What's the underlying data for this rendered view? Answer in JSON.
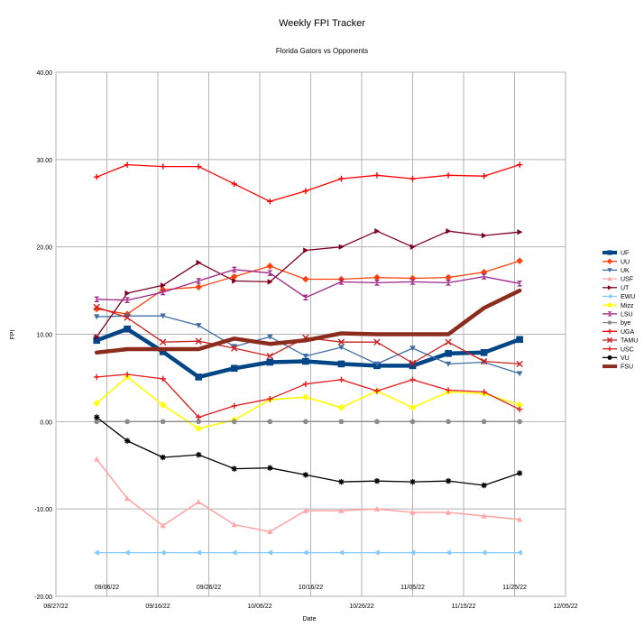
{
  "chart_data": {
    "type": "line",
    "title": "Weekly FPI Tracker",
    "subtitle": "Florida Gators vs Opponents",
    "xlabel": "Date",
    "ylabel": "FPI",
    "ylim": [
      -20,
      40
    ],
    "yticks": [
      "-20.00",
      "-10.00",
      "0.00",
      "10.00",
      "20.00",
      "30.00",
      "40.00"
    ],
    "xlim": [
      "2022-08-27",
      "2022-12-05"
    ],
    "xticks": [
      "08/27/22",
      "09/06/22",
      "09/16/22",
      "09/26/22",
      "10/06/22",
      "10/16/22",
      "10/26/22",
      "11/05/22",
      "11/15/22",
      "11/25/22",
      "12/05/22"
    ],
    "grid": true,
    "legend_position": "right",
    "x": [
      "2022-09-04",
      "2022-09-10",
      "2022-09-17",
      "2022-09-24",
      "2022-10-01",
      "2022-10-08",
      "2022-10-15",
      "2022-10-22",
      "2022-10-29",
      "2022-11-05",
      "2022-11-12",
      "2022-11-19",
      "2022-11-26"
    ],
    "series": [
      {
        "name": "UF",
        "color": "#004586",
        "marker": "square",
        "width": 4.5,
        "values": [
          9.3,
          10.6,
          8.0,
          5.1,
          6.1,
          6.8,
          6.9,
          6.6,
          6.4,
          6.4,
          7.8,
          7.9,
          9.4
        ]
      },
      {
        "name": "UU",
        "color": "#ff420e",
        "marker": "diamond",
        "width": 1.3,
        "values": [
          12.9,
          12.3,
          15.1,
          15.4,
          16.6,
          17.8,
          16.3,
          16.3,
          16.5,
          16.4,
          16.5,
          17.1,
          18.4
        ]
      },
      {
        "name": "UK",
        "color": "#3e6fa4",
        "marker": "tri-down",
        "width": 1.3,
        "values": [
          12.0,
          12.1,
          12.1,
          11.0,
          8.6,
          9.7,
          7.5,
          8.5,
          6.6,
          8.4,
          6.6,
          6.8,
          5.5
        ]
      },
      {
        "name": "USF",
        "color": "#ffa7a7",
        "marker": "tri-up",
        "width": 1.6,
        "values": [
          -4.3,
          -8.8,
          -11.9,
          -9.2,
          -11.8,
          -12.6,
          -10.2,
          -10.2,
          -10.0,
          -10.4,
          -10.4,
          -10.8,
          -11.2
        ]
      },
      {
        "name": "UT",
        "color": "#7e0021",
        "marker": "tri-right",
        "width": 1.3,
        "values": [
          9.7,
          14.7,
          15.6,
          18.2,
          16.1,
          16.0,
          19.6,
          20.0,
          21.8,
          20.0,
          21.8,
          21.3,
          21.7
        ]
      },
      {
        "name": "EWU",
        "color": "#83caff",
        "marker": "tri-left",
        "width": 1.3,
        "values": [
          -15.0,
          -15.0,
          -15.0,
          -15.0,
          -15.0,
          -15.0,
          -15.0,
          -15.0,
          -15.0,
          -15.0,
          -15.0,
          -15.0,
          -15.0
        ]
      },
      {
        "name": "Mizz",
        "color": "#ffff00",
        "marker": "diamond",
        "width": 1.6,
        "values": [
          2.1,
          5.1,
          1.9,
          -0.8,
          0.2,
          2.5,
          2.8,
          1.6,
          3.5,
          1.6,
          3.4,
          3.2,
          1.9
        ]
      },
      {
        "name": "LSU",
        "color": "#9c2487",
        "marker": "bowtie",
        "width": 1.3,
        "values": [
          14.0,
          13.9,
          14.8,
          16.1,
          17.4,
          17.0,
          14.2,
          16.0,
          15.9,
          16.0,
          15.9,
          16.6,
          15.8
        ]
      },
      {
        "name": "bye",
        "color": "#8b8b8b",
        "marker": "circle",
        "width": 1.3,
        "values": [
          0,
          0,
          0,
          0,
          0,
          0,
          0,
          0,
          0,
          0,
          0,
          0,
          0
        ]
      },
      {
        "name": "UGA",
        "color": "#ff0000",
        "marker": "plus",
        "width": 1.3,
        "values": [
          28.0,
          29.4,
          29.2,
          29.2,
          27.2,
          25.2,
          26.4,
          27.8,
          28.2,
          27.8,
          28.2,
          28.1,
          29.4
        ]
      },
      {
        "name": "TAMU",
        "color": "#c9211e",
        "marker": "x",
        "width": 1.3,
        "values": [
          13.1,
          11.9,
          9.1,
          9.2,
          8.4,
          7.5,
          9.6,
          9.1,
          9.1,
          6.7,
          9.1,
          6.9,
          6.6
        ]
      },
      {
        "name": "USC",
        "color": "#e41a1c",
        "marker": "plus",
        "width": 1.3,
        "values": [
          5.1,
          5.4,
          4.9,
          0.5,
          1.8,
          2.6,
          4.3,
          4.8,
          3.5,
          4.8,
          3.6,
          3.4,
          1.4
        ]
      },
      {
        "name": "VU",
        "color": "#000000",
        "marker": "star",
        "width": 1.3,
        "values": [
          0.5,
          -2.2,
          -4.1,
          -3.8,
          -5.4,
          -5.3,
          -6.1,
          -6.9,
          -6.8,
          -6.9,
          -6.8,
          -7.3,
          -5.9
        ]
      },
      {
        "name": "FSU",
        "color": "#8b2c1c",
        "marker": "none",
        "width": 4.5,
        "values": [
          7.9,
          8.3,
          8.3,
          8.3,
          9.5,
          8.9,
          9.3,
          10.1,
          10.0,
          10.0,
          10.0,
          13.0,
          15.0
        ]
      }
    ]
  }
}
